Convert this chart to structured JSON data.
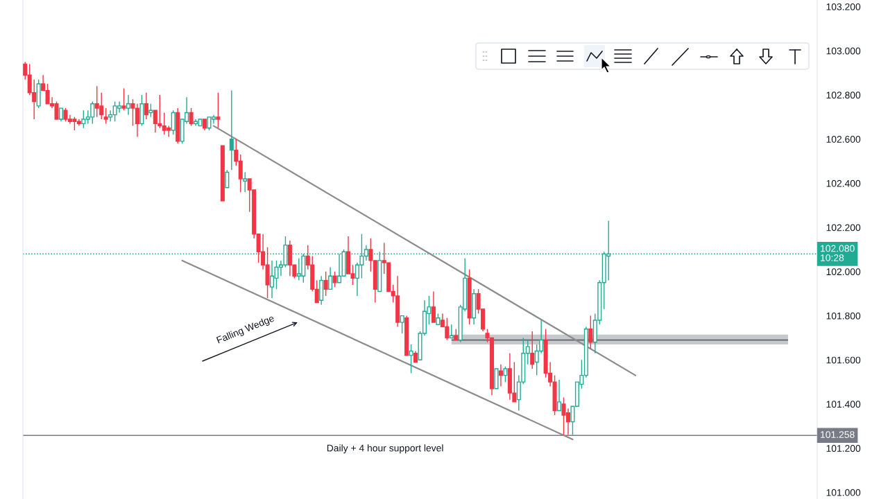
{
  "chart_data": {
    "type": "candlestick",
    "categories": [
      null,
      null,
      null,
      null,
      null,
      null,
      null,
      null,
      null,
      null,
      null,
      null,
      null,
      null,
      null,
      null,
      null,
      null,
      null,
      null,
      null,
      null,
      null,
      null,
      null,
      null,
      null,
      null,
      null,
      null,
      null,
      null,
      null,
      null,
      null,
      null,
      null,
      null,
      null,
      null,
      null,
      null,
      null,
      null,
      null,
      null,
      null,
      null,
      null,
      null,
      null,
      null,
      null,
      null,
      null,
      null,
      null,
      null,
      null,
      null,
      null,
      null,
      null,
      null,
      null,
      null,
      null,
      null,
      null,
      null,
      null,
      null,
      null,
      null,
      null,
      null,
      null,
      null,
      null,
      null,
      null,
      null,
      null,
      null,
      null,
      null,
      null,
      null,
      null,
      null,
      null,
      null,
      null,
      null,
      null,
      null,
      null,
      null,
      null,
      null,
      null,
      null,
      null,
      null,
      null,
      null,
      null,
      null,
      null,
      null,
      null,
      null,
      null,
      null,
      null,
      null,
      null,
      null,
      null,
      null,
      null,
      null,
      null,
      null,
      null,
      null,
      null,
      null,
      null,
      null,
      null,
      null,
      null,
      null,
      null,
      null,
      null,
      null,
      null,
      null,
      null,
      null,
      null,
      null,
      null,
      null,
      null,
      null,
      null,
      null,
      null,
      null,
      null,
      null,
      null,
      null,
      null,
      null,
      null,
      null,
      null,
      null,
      null,
      null,
      null,
      null,
      null,
      null,
      null,
      null,
      null,
      null,
      null,
      null,
      null,
      null,
      null
    ],
    "ohlc": [
      [
        102.94,
        102.95,
        102.87,
        102.89
      ],
      [
        102.89,
        102.94,
        102.8,
        102.81
      ],
      [
        102.81,
        102.87,
        102.69,
        102.77
      ],
      [
        102.75,
        102.87,
        102.74,
        102.85
      ],
      [
        102.85,
        102.89,
        102.82,
        102.82
      ],
      [
        102.82,
        102.85,
        102.76,
        102.76
      ],
      [
        102.76,
        102.79,
        102.74,
        102.75
      ],
      [
        102.76,
        102.77,
        102.69,
        102.69
      ],
      [
        102.69,
        102.74,
        102.68,
        102.74
      ],
      [
        102.73,
        102.74,
        102.68,
        102.69
      ],
      [
        102.69,
        102.71,
        102.67,
        102.68
      ],
      [
        102.69,
        102.7,
        102.64,
        102.68
      ],
      [
        102.68,
        102.69,
        102.66,
        102.67
      ],
      [
        102.67,
        102.73,
        102.65,
        102.69
      ],
      [
        102.69,
        102.73,
        102.67,
        102.7
      ],
      [
        102.7,
        102.77,
        102.67,
        102.76
      ],
      [
        102.76,
        102.84,
        102.7,
        102.74
      ],
      [
        102.75,
        102.81,
        102.69,
        102.71
      ],
      [
        102.7,
        102.74,
        102.67,
        102.69
      ],
      [
        102.7,
        102.73,
        102.68,
        102.71
      ],
      [
        102.71,
        102.77,
        102.68,
        102.75
      ],
      [
        102.74,
        102.77,
        102.72,
        102.75
      ],
      [
        102.75,
        102.83,
        102.73,
        102.74
      ],
      [
        102.74,
        102.8,
        102.71,
        102.76
      ],
      [
        102.76,
        102.78,
        102.66,
        102.74
      ],
      [
        102.74,
        102.76,
        102.61,
        102.67
      ],
      [
        102.67,
        102.8,
        102.66,
        102.76
      ],
      [
        102.76,
        102.81,
        102.69,
        102.71
      ],
      [
        102.72,
        102.76,
        102.7,
        102.73
      ],
      [
        102.73,
        102.73,
        102.63,
        102.67
      ],
      [
        102.67,
        102.8,
        102.65,
        102.66
      ],
      [
        102.66,
        102.72,
        102.62,
        102.64
      ],
      [
        102.65,
        102.66,
        102.61,
        102.64
      ],
      [
        102.64,
        102.73,
        102.62,
        102.72
      ],
      [
        102.72,
        102.74,
        102.58,
        102.59
      ],
      [
        102.59,
        102.69,
        102.58,
        102.69
      ],
      [
        102.68,
        102.79,
        102.67,
        102.72
      ],
      [
        102.72,
        102.74,
        102.66,
        102.67
      ],
      [
        102.67,
        102.69,
        102.66,
        102.68
      ],
      [
        102.66,
        102.69,
        102.66,
        102.69
      ],
      [
        102.69,
        102.69,
        102.64,
        102.65
      ],
      [
        102.65,
        102.7,
        102.64,
        102.7
      ],
      [
        102.69,
        102.71,
        102.67,
        102.7
      ],
      [
        102.7,
        102.81,
        102.65,
        102.69
      ],
      [
        102.57,
        102.57,
        102.32,
        102.32
      ],
      [
        102.38,
        102.46,
        102.38,
        102.45
      ],
      [
        102.6,
        102.82,
        102.46,
        102.55
      ],
      [
        102.55,
        102.6,
        102.48,
        102.5
      ],
      [
        102.5,
        102.53,
        102.36,
        102.42
      ],
      [
        102.41,
        102.45,
        102.36,
        102.42
      ],
      [
        102.42,
        102.42,
        102.27,
        102.37
      ],
      [
        102.37,
        102.37,
        102.15,
        102.17
      ],
      [
        102.17,
        102.17,
        102.04,
        102.09
      ],
      [
        102.09,
        102.17,
        102.01,
        102.03
      ],
      [
        102.03,
        102.11,
        101.88,
        101.94
      ],
      [
        101.93,
        102.05,
        101.88,
        101.98
      ],
      [
        101.97,
        102.05,
        101.92,
        102.02
      ],
      [
        102.02,
        102.05,
        101.98,
        102.03
      ],
      [
        102.03,
        102.16,
        102.02,
        102.12
      ],
      [
        102.12,
        102.14,
        101.98,
        102.03
      ],
      [
        102.03,
        102.03,
        101.97,
        101.98
      ],
      [
        101.98,
        102.06,
        101.96,
        101.99
      ],
      [
        101.98,
        102.08,
        101.95,
        102.07
      ],
      [
        102.07,
        102.12,
        102.01,
        102.03
      ],
      [
        102.03,
        102.07,
        101.91,
        101.92
      ],
      [
        101.92,
        101.96,
        101.86,
        101.86
      ],
      [
        101.87,
        101.98,
        101.85,
        101.96
      ],
      [
        101.96,
        102.0,
        101.89,
        101.92
      ],
      [
        101.92,
        102.02,
        101.92,
        101.98
      ],
      [
        101.98,
        102.0,
        101.93,
        101.95
      ],
      [
        101.95,
        102.08,
        101.95,
        101.98
      ],
      [
        101.98,
        102.1,
        101.98,
        102.09
      ],
      [
        102.09,
        102.16,
        101.99,
        101.99
      ],
      [
        101.99,
        102.03,
        101.94,
        101.97
      ],
      [
        101.97,
        102.04,
        101.89,
        102.03
      ],
      [
        102.03,
        102.17,
        101.97,
        102.07
      ],
      [
        102.07,
        102.12,
        102.05,
        102.1
      ],
      [
        102.1,
        102.15,
        102.0,
        102.05
      ],
      [
        102.05,
        102.05,
        101.86,
        101.92
      ],
      [
        101.91,
        102.09,
        101.91,
        102.05
      ],
      [
        102.05,
        102.13,
        101.99,
        102.04
      ],
      [
        102.04,
        102.04,
        101.91,
        101.91
      ],
      [
        101.91,
        101.94,
        101.86,
        101.89
      ],
      [
        101.89,
        101.98,
        101.75,
        101.77
      ],
      [
        101.77,
        101.8,
        101.72,
        101.8
      ],
      [
        101.79,
        101.8,
        101.62,
        101.62
      ],
      [
        101.62,
        101.67,
        101.54,
        101.64
      ],
      [
        101.63,
        101.64,
        101.59,
        101.59
      ],
      [
        101.6,
        101.73,
        101.6,
        101.72
      ],
      [
        101.72,
        101.87,
        101.71,
        101.82
      ],
      [
        101.81,
        101.89,
        101.76,
        101.84
      ],
      [
        101.84,
        101.91,
        101.77,
        101.77
      ],
      [
        101.76,
        101.81,
        101.76,
        101.79
      ],
      [
        101.78,
        101.81,
        101.75,
        101.75
      ],
      [
        101.75,
        101.79,
        101.69,
        101.7
      ],
      [
        101.7,
        101.76,
        101.7,
        101.71
      ],
      [
        101.71,
        101.74,
        101.69,
        101.69
      ],
      [
        101.69,
        101.85,
        101.68,
        101.84
      ],
      [
        101.83,
        102.06,
        101.82,
        101.97
      ],
      [
        101.97,
        102.01,
        101.76,
        101.79
      ],
      [
        101.79,
        101.92,
        101.76,
        101.9
      ],
      [
        101.9,
        101.92,
        101.81,
        101.83
      ],
      [
        101.83,
        101.83,
        101.73,
        101.74
      ],
      [
        101.72,
        101.74,
        101.68,
        101.7
      ],
      [
        101.7,
        101.7,
        101.44,
        101.47
      ],
      [
        101.47,
        101.56,
        101.47,
        101.56
      ],
      [
        101.55,
        101.58,
        101.48,
        101.53
      ],
      [
        101.53,
        101.57,
        101.5,
        101.56
      ],
      [
        101.56,
        101.63,
        101.42,
        101.45
      ],
      [
        101.45,
        101.59,
        101.41,
        101.41
      ],
      [
        101.42,
        101.53,
        101.37,
        101.5
      ],
      [
        101.5,
        101.7,
        101.49,
        101.63
      ],
      [
        101.63,
        101.69,
        101.58,
        101.66
      ],
      [
        101.63,
        101.73,
        101.56,
        101.58
      ],
      [
        101.59,
        101.67,
        101.53,
        101.64
      ],
      [
        101.64,
        101.78,
        101.63,
        101.69
      ],
      [
        101.69,
        101.74,
        101.52,
        101.54
      ],
      [
        101.54,
        101.59,
        101.48,
        101.5
      ],
      [
        101.5,
        101.53,
        101.35,
        101.37
      ],
      [
        101.37,
        101.51,
        101.37,
        101.41
      ],
      [
        101.4,
        101.43,
        101.26,
        101.35
      ],
      [
        101.36,
        101.38,
        101.26,
        101.32
      ],
      [
        101.32,
        101.39,
        101.26,
        101.39
      ],
      [
        101.39,
        101.5,
        101.39,
        101.5
      ],
      [
        101.49,
        101.6,
        101.47,
        101.53
      ],
      [
        101.53,
        101.75,
        101.52,
        101.74
      ],
      [
        101.74,
        101.8,
        101.65,
        101.68
      ],
      [
        101.68,
        101.81,
        101.63,
        101.78
      ],
      [
        101.78,
        101.96,
        101.76,
        101.95
      ],
      [
        101.95,
        102.09,
        101.83,
        102.08
      ],
      [
        102.07,
        102.23,
        101.96,
        102.08
      ],
      null,
      null,
      null,
      null,
      null,
      null,
      null,
      null,
      null,
      null,
      null,
      null,
      null,
      null,
      null,
      null,
      null,
      null,
      null,
      null,
      null,
      null,
      null,
      null,
      null,
      null,
      null,
      null,
      null,
      null,
      null,
      null,
      null,
      null,
      null,
      null,
      null,
      null,
      null,
      null,
      null,
      null,
      null,
      null,
      null,
      null
    ],
    "colors": [
      "#f23645",
      "#f23645",
      "#f23645",
      "#22ab94",
      "#f23645",
      "#f23645",
      "#f23645",
      "#f23645",
      "#22ab94",
      "#f23645",
      "#f23645",
      "#f23645",
      "#f23645",
      "#22ab94",
      "#22ab94",
      "#22ab94",
      "#f23645",
      "#f23645",
      "#f23645",
      "#22ab94",
      "#22ab94",
      "#22ab94",
      "#f23645",
      "#22ab94",
      "#f23645",
      "#f23645",
      "#22ab94",
      "#f23645",
      "#22ab94",
      "#f23645",
      "#f23645",
      "#f23645",
      "#f23645",
      "#22ab94",
      "#f23645",
      "#22ab94",
      "#22ab94",
      "#f23645",
      "#22ab94",
      "#22ab94",
      "#f23645",
      "#22ab94",
      "#22ab94",
      "#f23645",
      "#f23645",
      "#22ab94",
      "#22ab94",
      "#f23645",
      "#f23645",
      "#22ab94",
      "#f23645",
      "#f23645",
      "#f23645",
      "#f23645",
      "#f23645",
      "#22ab94",
      "#22ab94",
      "#22ab94",
      "#22ab94",
      "#f23645",
      "#f23645",
      "#22ab94",
      "#22ab94",
      "#f23645",
      "#f23645",
      "#f23645",
      "#22ab94",
      "#f23645",
      "#22ab94",
      "#f23645",
      "#22ab94",
      "#22ab94",
      "#f23645",
      "#f23645",
      "#22ab94",
      "#22ab94",
      "#22ab94",
      "#f23645",
      "#f23645",
      "#22ab94",
      "#f23645",
      "#f23645",
      "#f23645",
      "#f23645",
      "#22ab94",
      "#f23645",
      "#22ab94",
      "#f23645",
      "#22ab94",
      "#22ab94",
      "#22ab94",
      "#f23645",
      "#22ab94",
      "#f23645",
      "#f23645",
      "#22ab94",
      "#f23645",
      "#22ab94",
      "#22ab94",
      "#f23645",
      "#22ab94",
      "#f23645",
      "#f23645",
      "#f23645",
      "#f23645",
      "#22ab94",
      "#f23645",
      "#22ab94",
      "#f23645",
      "#f23645",
      "#22ab94",
      "#22ab94",
      "#22ab94",
      "#f23645",
      "#22ab94",
      "#22ab94",
      "#f23645",
      "#f23645",
      "#f23645",
      "#22ab94",
      "#f23645",
      "#f23645",
      "#22ab94",
      "#22ab94",
      "#22ab94",
      "#22ab94",
      "#f23645",
      "#22ab94",
      "#22ab94",
      "#22ab94",
      "#22ab94",
      null,
      null,
      null,
      null,
      null,
      null,
      null,
      null,
      null,
      null,
      null,
      null,
      null,
      null,
      null,
      null,
      null,
      null,
      null,
      null,
      null,
      null,
      null,
      null,
      null,
      null,
      null,
      null,
      null,
      null,
      null,
      null,
      null,
      null,
      null,
      null,
      null,
      null,
      null,
      null,
      null,
      null,
      null,
      null,
      null,
      null
    ],
    "series": [
      {
        "type": "line",
        "color": "#8c8c8c",
        "values": [
          null,
          null,
          null,
          null,
          null,
          null,
          null,
          null,
          null,
          null,
          null,
          null,
          null,
          null,
          null,
          null,
          null,
          null,
          null,
          null,
          null,
          null,
          null,
          null,
          null,
          null,
          null,
          null,
          null,
          null,
          null,
          null,
          null,
          null,
          null,
          null,
          null,
          null,
          null,
          null,
          null,
          null,
          102.66,
          null,
          null,
          null,
          null,
          null,
          null,
          null,
          null,
          null,
          null,
          null,
          null,
          null,
          null,
          null,
          null,
          null,
          null,
          null,
          null,
          null,
          null,
          null,
          null,
          null,
          null,
          null,
          null,
          null,
          null,
          null,
          null,
          null,
          null,
          null,
          null,
          null,
          null,
          null,
          null,
          null,
          null,
          null,
          null,
          null,
          null,
          null,
          null,
          null,
          null,
          null,
          null,
          null,
          null,
          null,
          null,
          null,
          null,
          null,
          null,
          null,
          null,
          null,
          null,
          null,
          null,
          null,
          null,
          null,
          null,
          null,
          null,
          null,
          null,
          null,
          null,
          null,
          null,
          null,
          null,
          null,
          null,
          null,
          null,
          null,
          null,
          null,
          null,
          null,
          null,
          null,
          null,
          null,
          101.53,
          null,
          null,
          null,
          null,
          null,
          null,
          null,
          null,
          null,
          null,
          null,
          null,
          null,
          null,
          null,
          null,
          null,
          null,
          null,
          null,
          null,
          null,
          null,
          null,
          null,
          null,
          null,
          null,
          null,
          null,
          null,
          null,
          null,
          null,
          null,
          null,
          null,
          null,
          null,
          null
        ]
      },
      {
        "type": "line",
        "color": "#8c8c8c",
        "values": [
          null,
          null,
          null,
          null,
          null,
          null,
          null,
          null,
          null,
          null,
          null,
          null,
          null,
          null,
          null,
          null,
          null,
          null,
          null,
          null,
          null,
          null,
          null,
          null,
          null,
          null,
          null,
          null,
          null,
          null,
          null,
          null,
          null,
          null,
          null,
          102.05,
          null,
          null,
          null,
          null,
          null,
          null,
          null,
          null,
          null,
          null,
          null,
          null,
          null,
          null,
          null,
          null,
          null,
          null,
          null,
          null,
          null,
          null,
          null,
          null,
          null,
          null,
          null,
          null,
          null,
          null,
          null,
          null,
          null,
          null,
          null,
          null,
          null,
          null,
          null,
          null,
          null,
          null,
          null,
          null,
          null,
          null,
          null,
          null,
          null,
          null,
          null,
          null,
          null,
          null,
          null,
          null,
          null,
          null,
          null,
          null,
          null,
          null,
          null,
          null,
          null,
          null,
          null,
          null,
          null,
          null,
          null,
          null,
          null,
          null,
          null,
          null,
          null,
          null,
          null,
          null,
          null,
          null,
          null,
          null,
          null,
          null,
          101.24,
          null,
          null,
          null,
          null,
          null,
          null,
          null,
          null,
          null,
          null,
          null,
          null,
          null,
          null,
          null,
          null,
          null,
          null,
          null,
          null,
          null,
          null,
          null,
          null,
          null,
          null,
          null,
          null,
          null,
          null,
          null,
          null,
          null,
          null,
          null,
          null,
          null,
          null,
          null,
          null,
          null,
          null,
          null,
          null,
          null,
          null,
          null,
          null,
          null,
          null,
          null,
          null,
          null,
          null
        ]
      },
      {
        "type": "line",
        "color": "#5d606b",
        "values": [
          null,
          null,
          null,
          null,
          null,
          null,
          null,
          null,
          null,
          null,
          null,
          null,
          null,
          null,
          null,
          null,
          null,
          null,
          null,
          null,
          null,
          null,
          null,
          null,
          null,
          null,
          null,
          null,
          null,
          null,
          null,
          null,
          null,
          null,
          null,
          null,
          null,
          null,
          null,
          null,
          null,
          null,
          null,
          null,
          null,
          null,
          null,
          null,
          null,
          null,
          null,
          null,
          null,
          null,
          null,
          null,
          null,
          null,
          null,
          null,
          null,
          null,
          null,
          null,
          null,
          null,
          null,
          null,
          null,
          null,
          null,
          null,
          null,
          null,
          null,
          null,
          null,
          null,
          null,
          null,
          null,
          null,
          null,
          null,
          null,
          null,
          null,
          null,
          null,
          null,
          null,
          null,
          null,
          null,
          null,
          101.69,
          101.69,
          101.69,
          101.69,
          101.69,
          101.69,
          101.69,
          101.69,
          101.69,
          101.69,
          101.69,
          101.69,
          101.69,
          101.69,
          101.69,
          101.69,
          101.69,
          101.69,
          101.69,
          101.69,
          101.69,
          101.69,
          101.69,
          101.69,
          101.69,
          101.69,
          101.69,
          101.69,
          101.69,
          101.69,
          101.69,
          101.69,
          101.69,
          101.69,
          101.69,
          101.69,
          101.69,
          101.69,
          101.69,
          101.69,
          101.69,
          101.69,
          101.69,
          101.69,
          101.69,
          101.69,
          101.69,
          101.69,
          101.69,
          101.69,
          101.69,
          101.69,
          101.69,
          101.69,
          101.69,
          101.69,
          101.69,
          101.69,
          101.69,
          101.69,
          101.69,
          101.69,
          101.69,
          101.69,
          101.69,
          101.69,
          101.69,
          101.69,
          101.69,
          101.69,
          101.69,
          101.69,
          101.69,
          101.69,
          101.69,
          101.69,
          null,
          null,
          null,
          null,
          null,
          null
        ],
        "lower": [
          null,
          null,
          null,
          null,
          null,
          null,
          null,
          null,
          null,
          null,
          null,
          null,
          null,
          null,
          null,
          null,
          null,
          null,
          null,
          null,
          null,
          null,
          null,
          null,
          null,
          null,
          null,
          null,
          null,
          null,
          null,
          null,
          null,
          null,
          null,
          null,
          null,
          null,
          null,
          null,
          null,
          null,
          null,
          null,
          null,
          null,
          null,
          null,
          null,
          null,
          null,
          null,
          null,
          null,
          null,
          null,
          null,
          null,
          null,
          null,
          null,
          null,
          null,
          null,
          null,
          null,
          null,
          null,
          null,
          null,
          null,
          null,
          null,
          null,
          null,
          null,
          null,
          null,
          null,
          null,
          null,
          null,
          null,
          null,
          null,
          null,
          null,
          null,
          null,
          null,
          null,
          null,
          null,
          null,
          null,
          101.67,
          101.67,
          101.67,
          101.67,
          101.67,
          101.67,
          101.67,
          101.67,
          101.67,
          101.67,
          101.67,
          101.67,
          101.67,
          101.67,
          101.67,
          101.67,
          101.67,
          101.67,
          101.67,
          101.67,
          101.67,
          101.67,
          101.67,
          101.67,
          101.67,
          101.67,
          101.67,
          101.67,
          101.67,
          101.67,
          101.67,
          101.67,
          101.67,
          101.67,
          101.67,
          101.67,
          101.67,
          101.67,
          101.67,
          101.67,
          101.67,
          101.67,
          101.67,
          101.67,
          101.67,
          101.67,
          101.67,
          101.67,
          101.67,
          101.67,
          101.67,
          101.67,
          101.67,
          101.67,
          101.67,
          101.67,
          101.67,
          101.67,
          101.67,
          101.67,
          101.67,
          101.67,
          101.67,
          101.67,
          101.67,
          101.67,
          101.67,
          101.67,
          101.67,
          101.67,
          101.67,
          101.67,
          101.67,
          101.67,
          101.67,
          101.67,
          null,
          null,
          null,
          null,
          null,
          null
        ],
        "upper": [
          null,
          null,
          null,
          null,
          null,
          null,
          null,
          null,
          null,
          null,
          null,
          null,
          null,
          null,
          null,
          null,
          null,
          null,
          null,
          null,
          null,
          null,
          null,
          null,
          null,
          null,
          null,
          null,
          null,
          null,
          null,
          null,
          null,
          null,
          null,
          null,
          null,
          null,
          null,
          null,
          null,
          null,
          null,
          null,
          null,
          null,
          null,
          null,
          null,
          null,
          null,
          null,
          null,
          null,
          null,
          null,
          null,
          null,
          null,
          null,
          null,
          null,
          null,
          null,
          null,
          null,
          null,
          null,
          null,
          null,
          null,
          null,
          null,
          null,
          null,
          null,
          null,
          null,
          null,
          null,
          null,
          null,
          null,
          null,
          null,
          null,
          null,
          null,
          null,
          null,
          null,
          null,
          null,
          null,
          null,
          101.715,
          101.715,
          101.715,
          101.715,
          101.715,
          101.715,
          101.715,
          101.715,
          101.715,
          101.715,
          101.715,
          101.715,
          101.715,
          101.715,
          101.715,
          101.715,
          101.715,
          101.715,
          101.715,
          101.715,
          101.715,
          101.715,
          101.715,
          101.715,
          101.715,
          101.715,
          101.715,
          101.715,
          101.715,
          101.715,
          101.715,
          101.715,
          101.715,
          101.715,
          101.715,
          101.715,
          101.715,
          101.715,
          101.715,
          101.715,
          101.715,
          101.715,
          101.715,
          101.715,
          101.715,
          101.715,
          101.715,
          101.715,
          101.715,
          101.715,
          101.715,
          101.715,
          101.715,
          101.715,
          101.715,
          101.715,
          101.715,
          101.715,
          101.715,
          101.715,
          101.715,
          101.715,
          101.715,
          101.715,
          101.715,
          101.715,
          101.715,
          101.715,
          101.715,
          101.715,
          101.715,
          101.715,
          101.715,
          101.715,
          101.715,
          101.715,
          null,
          null,
          null,
          null,
          null,
          null
        ]
      }
    ],
    "ylim": [
      100.97,
      103.23
    ],
    "yticks": [
      {
        "value": 101.0,
        "label": "101.000"
      },
      {
        "value": 101.2,
        "label": "101.200"
      },
      {
        "value": 101.4,
        "label": "101.400"
      },
      {
        "value": 101.6,
        "label": "101.600"
      },
      {
        "value": 101.8,
        "label": "101.800"
      },
      {
        "value": 102.0,
        "label": "102.000"
      },
      {
        "value": 102.2,
        "label": "102.200"
      },
      {
        "value": 102.4,
        "label": "102.400"
      },
      {
        "value": 102.6,
        "label": "102.600"
      },
      {
        "value": 102.8,
        "label": "102.800"
      },
      {
        "value": 103.0,
        "label": "103.000"
      },
      {
        "value": 103.2,
        "label": "103.200"
      }
    ],
    "ref_lines": [
      {
        "axis": "y",
        "value": 102.08,
        "label": "102.080\n10:28",
        "color": "#22ab94",
        "line_style": "dotted"
      },
      {
        "axis": "y",
        "value": 101.258,
        "label": "101.258",
        "color": "#787b86",
        "line_style": "solid"
      }
    ],
    "annotations": [
      "Falling Wedge",
      {
        "text": "Daily + 4 hour support level",
        "y": 101.258
      }
    ],
    "tick_labels": "y"
  }
}
